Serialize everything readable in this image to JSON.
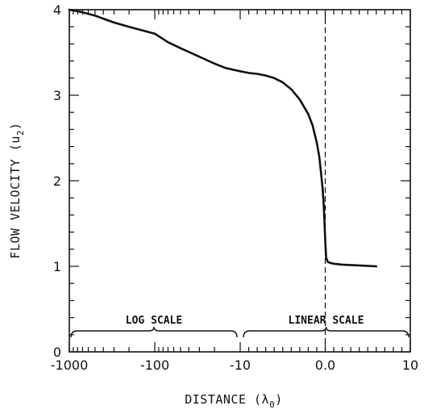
{
  "chart_data": {
    "type": "line",
    "title": "",
    "xlabel": "DISTANCE (λ",
    "xlabel_sub": "0",
    "xlabel_close": ")",
    "ylabel": "FLOW VELOCITY (u",
    "ylabel_sub": "2",
    "ylabel_close": ")",
    "ylim": [
      0,
      4
    ],
    "y_ticks": [
      "0",
      "1",
      "2",
      "3",
      "4"
    ],
    "x_ticks": [
      "-1000",
      "-100",
      "-10",
      "0.0",
      "10"
    ],
    "x_scale_note": "log-linear composite axis",
    "regions": [
      {
        "label": "LOG SCALE",
        "x_range": [
          -1000,
          -10
        ]
      },
      {
        "label": "LINEAR SCALE",
        "x_range": [
          -10,
          10
        ]
      }
    ],
    "reference_line": {
      "x": 0.0,
      "style": "dashed"
    },
    "grid": false,
    "legend": "none",
    "series": [
      {
        "x": [
          -1000,
          -700,
          -500,
          -300,
          -200,
          -100,
          -70,
          -50,
          -30,
          -20,
          -15,
          -10,
          -9,
          -8,
          -7,
          -6,
          -5,
          -4,
          -3,
          -2,
          -1.5,
          -1,
          -0.7,
          -0.5,
          -0.3,
          -0.2,
          -0.1,
          0.0,
          0.1,
          0.3,
          0.6,
          1,
          2,
          4,
          6
        ],
        "y": [
          4.0,
          3.97,
          3.93,
          3.85,
          3.8,
          3.72,
          3.62,
          3.55,
          3.45,
          3.37,
          3.32,
          3.28,
          3.26,
          3.25,
          3.23,
          3.2,
          3.15,
          3.07,
          2.95,
          2.78,
          2.65,
          2.45,
          2.28,
          2.1,
          1.9,
          1.75,
          1.55,
          1.3,
          1.1,
          1.05,
          1.04,
          1.03,
          1.02,
          1.01,
          1.0
        ]
      }
    ]
  }
}
